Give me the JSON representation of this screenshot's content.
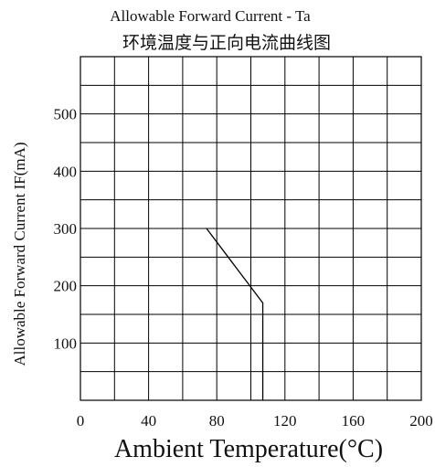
{
  "chart_data": {
    "type": "line",
    "title": "Allowable Forward Current - Ta",
    "subtitle": "环境温度与正向电流曲线图",
    "xlabel": "Ambient Temperature(°C)",
    "ylabel": "Allowable Forward Current IF(mA)",
    "xlim": [
      0,
      200
    ],
    "ylim": [
      0,
      600
    ],
    "x_ticks": [
      0,
      40,
      80,
      120,
      160,
      200
    ],
    "x_tick_labels": [
      "0",
      "40",
      "80",
      "120",
      "160",
      "200"
    ],
    "y_ticks": [
      100,
      200,
      300,
      400,
      500
    ],
    "y_tick_labels": [
      "100",
      "200",
      "300",
      "400",
      "500"
    ],
    "x_grid_step": 20,
    "y_grid_step": 50,
    "grid": true,
    "series": [
      {
        "x": [
          74,
          107,
          107
        ],
        "y": [
          300,
          170,
          0
        ],
        "color": "#000000"
      }
    ]
  }
}
